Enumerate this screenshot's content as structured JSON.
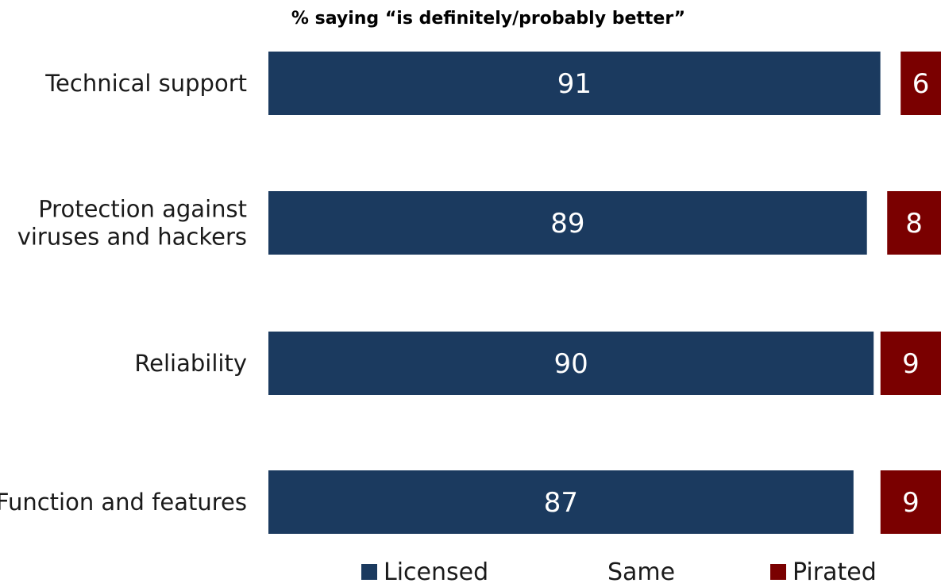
{
  "chart_data": {
    "type": "bar",
    "orientation": "horizontal",
    "title": "% saying “is definitely/probably better”",
    "categories": [
      "Technical support",
      "Protection against viruses and hackers",
      "Reliability",
      "Function and features"
    ],
    "category_lines": [
      [
        "Technical support"
      ],
      [
        "Protection against",
        "viruses and hackers"
      ],
      [
        "Reliability"
      ],
      [
        "Function and features"
      ]
    ],
    "series": [
      {
        "name": "Licensed",
        "values": [
          91,
          89,
          90,
          87
        ],
        "color": "#1b3a5f"
      },
      {
        "name": "Same",
        "values": [
          3,
          3,
          1,
          4
        ],
        "color": "#ffffff"
      },
      {
        "name": "Pirated",
        "values": [
          6,
          8,
          9,
          9
        ],
        "color": "#7a0000"
      }
    ],
    "stacked": true,
    "xlim": [
      0,
      100
    ],
    "xlabel": "",
    "ylabel": "",
    "grid": false,
    "legend_position": "bottom"
  },
  "legend": {
    "items": [
      {
        "label": "Licensed",
        "color": "#1b3a5f",
        "show_swatch": true
      },
      {
        "label": "Same",
        "color": "#ffffff",
        "show_swatch": false
      },
      {
        "label": "Pirated",
        "color": "#7a0000",
        "show_swatch": true
      }
    ]
  }
}
